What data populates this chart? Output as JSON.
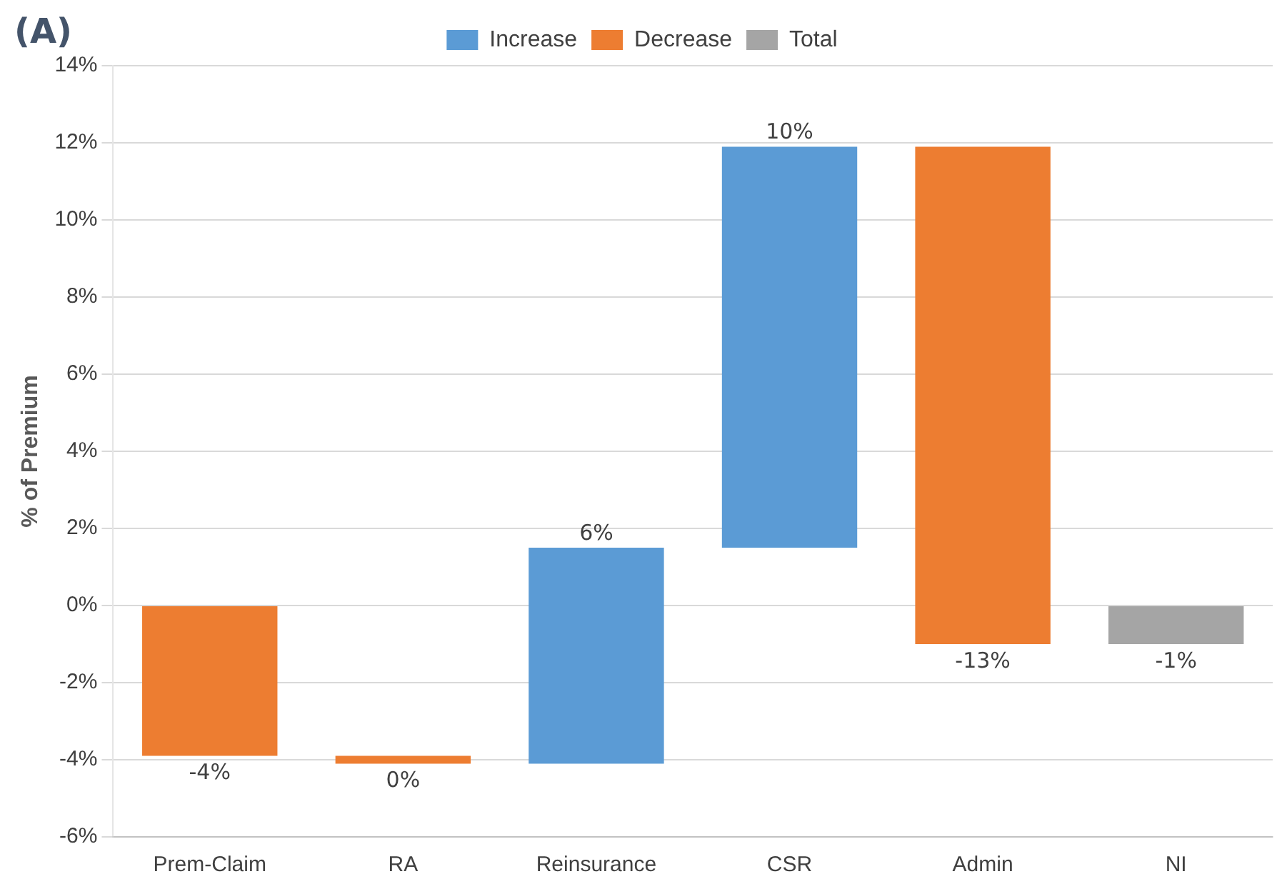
{
  "chart_data": {
    "type": "bar",
    "title": "(A)",
    "ylabel": "% of Premium",
    "categories": [
      "Prem-Claim",
      "RA",
      "Reinsurance",
      "CSR",
      "Admin",
      "NI"
    ],
    "series": [
      {
        "name": "Increase",
        "color": "#5b9bd5",
        "base": [
          null,
          null,
          -4.1,
          1.5,
          null,
          null
        ],
        "values": [
          null,
          null,
          5.6,
          10.4,
          null,
          null
        ],
        "value_labels": [
          null,
          null,
          "6%",
          "10%",
          null,
          null
        ]
      },
      {
        "name": "Decrease",
        "color": "#ed7d31",
        "base": [
          0,
          -3.9,
          null,
          null,
          11.9,
          null
        ],
        "values": [
          -3.9,
          -0.2,
          null,
          null,
          -12.9,
          null
        ],
        "value_labels": [
          "-4%",
          "0%",
          null,
          null,
          "-13%",
          null
        ]
      },
      {
        "name": "Total",
        "color": "#a5a5a5",
        "base": [
          null,
          null,
          null,
          null,
          null,
          0
        ],
        "values": [
          null,
          null,
          null,
          null,
          null,
          -1.0
        ],
        "value_labels": [
          null,
          null,
          null,
          null,
          null,
          "-1%"
        ]
      }
    ],
    "ylim": [
      -6,
      14
    ],
    "yticks": [
      {
        "value": -6,
        "label": "-6%"
      },
      {
        "value": -4,
        "label": "-4%"
      },
      {
        "value": -2,
        "label": "-2%"
      },
      {
        "value": 0,
        "label": "0%"
      },
      {
        "value": 2,
        "label": "2%"
      },
      {
        "value": 4,
        "label": "4%"
      },
      {
        "value": 6,
        "label": "6%"
      },
      {
        "value": 8,
        "label": "8%"
      },
      {
        "value": 10,
        "label": "10%"
      },
      {
        "value": 12,
        "label": "12%"
      },
      {
        "value": 14,
        "label": "14%"
      }
    ],
    "grid": "y",
    "legend": "top"
  }
}
